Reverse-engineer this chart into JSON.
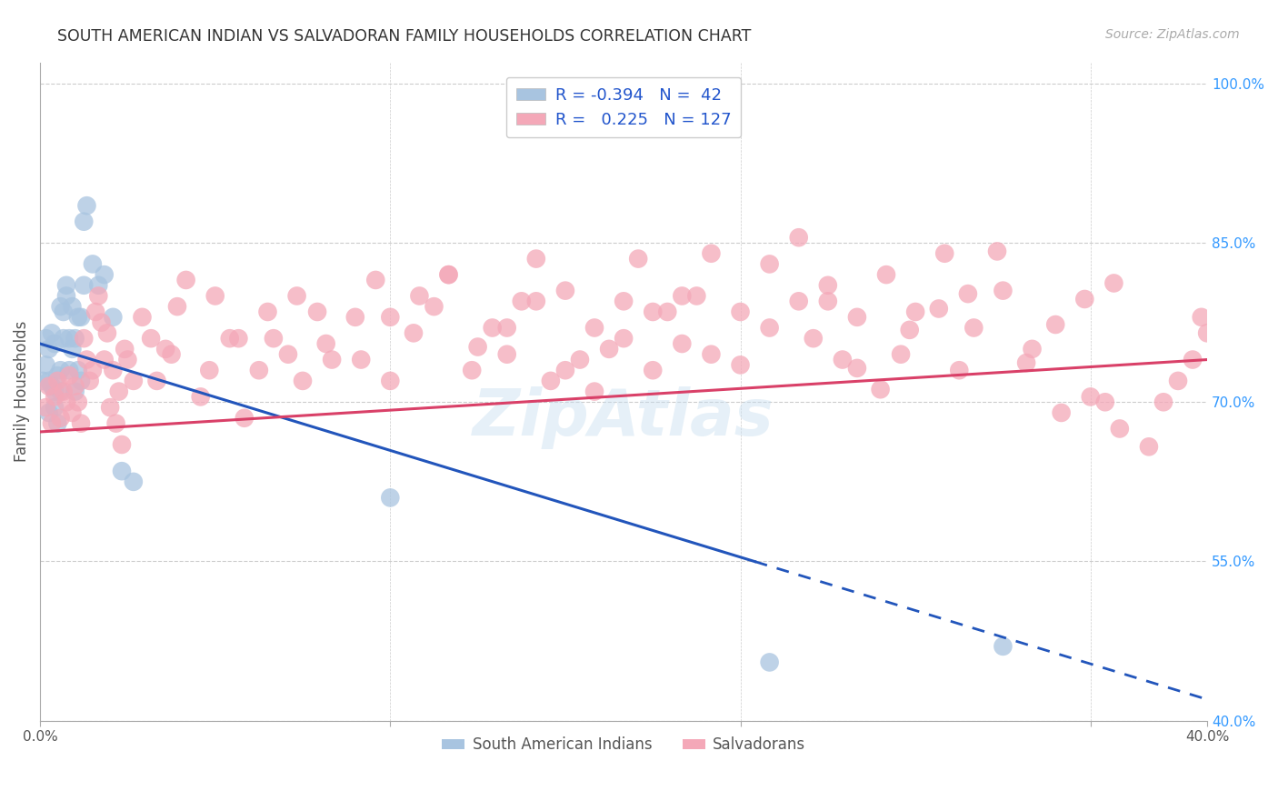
{
  "title": "SOUTH AMERICAN INDIAN VS SALVADORAN FAMILY HOUSEHOLDS CORRELATION CHART",
  "source": "Source: ZipAtlas.com",
  "ylabel": "Family Households",
  "ylabel_right_ticks": [
    "100.0%",
    "85.0%",
    "70.0%",
    "55.0%",
    "40.0%"
  ],
  "ylabel_right_vals": [
    1.0,
    0.85,
    0.7,
    0.55,
    0.4
  ],
  "xtick_labels": [
    "0.0%",
    "40.0%"
  ],
  "xtick_vals": [
    0.0,
    0.4
  ],
  "xmin": 0.0,
  "xmax": 0.4,
  "ymin": 0.4,
  "ymax": 1.02,
  "legend_r_blue": "-0.394",
  "legend_n_blue": "42",
  "legend_r_pink": "0.225",
  "legend_n_pink": "127",
  "blue_color": "#a8c4e0",
  "pink_color": "#f4a8b8",
  "blue_line_color": "#2255bb",
  "pink_line_color": "#d94068",
  "grid_color": "#cccccc",
  "blue_line_x0": 0.0,
  "blue_line_y0": 0.755,
  "blue_line_x1": 0.4,
  "blue_line_y1": 0.42,
  "blue_line_solid_end": 0.245,
  "pink_line_x0": 0.0,
  "pink_line_y0": 0.672,
  "pink_line_x1": 0.4,
  "pink_line_y1": 0.74,
  "blue_scatter_x": [
    0.001,
    0.002,
    0.002,
    0.003,
    0.003,
    0.003,
    0.004,
    0.004,
    0.005,
    0.005,
    0.005,
    0.006,
    0.006,
    0.007,
    0.007,
    0.007,
    0.008,
    0.008,
    0.009,
    0.009,
    0.01,
    0.01,
    0.011,
    0.011,
    0.012,
    0.012,
    0.013,
    0.013,
    0.014,
    0.014,
    0.015,
    0.015,
    0.016,
    0.018,
    0.02,
    0.022,
    0.025,
    0.028,
    0.032,
    0.12,
    0.25,
    0.33
  ],
  "blue_scatter_y": [
    0.72,
    0.735,
    0.76,
    0.75,
    0.69,
    0.72,
    0.715,
    0.765,
    0.71,
    0.755,
    0.695,
    0.725,
    0.68,
    0.79,
    0.73,
    0.71,
    0.785,
    0.76,
    0.81,
    0.8,
    0.76,
    0.73,
    0.79,
    0.75,
    0.76,
    0.71,
    0.78,
    0.73,
    0.78,
    0.72,
    0.81,
    0.87,
    0.885,
    0.83,
    0.81,
    0.82,
    0.78,
    0.635,
    0.625,
    0.61,
    0.455,
    0.47
  ],
  "pink_scatter_x": [
    0.002,
    0.003,
    0.004,
    0.005,
    0.006,
    0.007,
    0.008,
    0.009,
    0.01,
    0.011,
    0.012,
    0.013,
    0.014,
    0.015,
    0.016,
    0.017,
    0.018,
    0.019,
    0.02,
    0.021,
    0.022,
    0.023,
    0.024,
    0.025,
    0.026,
    0.027,
    0.028,
    0.029,
    0.03,
    0.032,
    0.035,
    0.038,
    0.04,
    0.043,
    0.047,
    0.05,
    0.055,
    0.06,
    0.065,
    0.07,
    0.075,
    0.08,
    0.085,
    0.09,
    0.095,
    0.1,
    0.108,
    0.115,
    0.12,
    0.128,
    0.135,
    0.14,
    0.148,
    0.155,
    0.16,
    0.165,
    0.17,
    0.175,
    0.18,
    0.185,
    0.19,
    0.195,
    0.2,
    0.205,
    0.21,
    0.215,
    0.22,
    0.225,
    0.23,
    0.24,
    0.25,
    0.26,
    0.265,
    0.27,
    0.275,
    0.28,
    0.29,
    0.295,
    0.3,
    0.31,
    0.315,
    0.32,
    0.33,
    0.34,
    0.35,
    0.36,
    0.365,
    0.37,
    0.38,
    0.385,
    0.39,
    0.395,
    0.398,
    0.4,
    0.045,
    0.058,
    0.068,
    0.078,
    0.088,
    0.098,
    0.11,
    0.12,
    0.13,
    0.14,
    0.15,
    0.16,
    0.17,
    0.18,
    0.19,
    0.2,
    0.21,
    0.22,
    0.23,
    0.24,
    0.25,
    0.26,
    0.27,
    0.28,
    0.288,
    0.298,
    0.308,
    0.318,
    0.328,
    0.338,
    0.348,
    0.358,
    0.368
  ],
  "pink_scatter_y": [
    0.695,
    0.715,
    0.68,
    0.705,
    0.72,
    0.685,
    0.71,
    0.7,
    0.725,
    0.69,
    0.715,
    0.7,
    0.68,
    0.76,
    0.74,
    0.72,
    0.73,
    0.785,
    0.8,
    0.775,
    0.74,
    0.765,
    0.695,
    0.73,
    0.68,
    0.71,
    0.66,
    0.75,
    0.74,
    0.72,
    0.78,
    0.76,
    0.72,
    0.75,
    0.79,
    0.815,
    0.705,
    0.8,
    0.76,
    0.685,
    0.73,
    0.76,
    0.745,
    0.72,
    0.785,
    0.74,
    0.78,
    0.815,
    0.72,
    0.765,
    0.79,
    0.82,
    0.73,
    0.77,
    0.745,
    0.795,
    0.835,
    0.72,
    0.805,
    0.74,
    0.77,
    0.75,
    0.795,
    0.835,
    0.73,
    0.785,
    0.755,
    0.8,
    0.745,
    0.785,
    0.83,
    0.855,
    0.76,
    0.795,
    0.74,
    0.78,
    0.82,
    0.745,
    0.785,
    0.84,
    0.73,
    0.77,
    0.805,
    0.75,
    0.69,
    0.705,
    0.7,
    0.675,
    0.658,
    0.7,
    0.72,
    0.74,
    0.78,
    0.765,
    0.745,
    0.73,
    0.76,
    0.785,
    0.8,
    0.755,
    0.74,
    0.78,
    0.8,
    0.82,
    0.752,
    0.77,
    0.795,
    0.73,
    0.71,
    0.76,
    0.785,
    0.8,
    0.84,
    0.735,
    0.77,
    0.795,
    0.81,
    0.732,
    0.712,
    0.768,
    0.788,
    0.802,
    0.842,
    0.737,
    0.773,
    0.797,
    0.812
  ]
}
